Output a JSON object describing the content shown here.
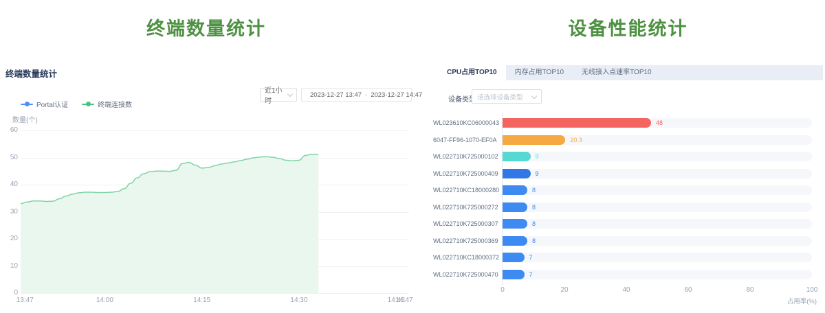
{
  "colors": {
    "title_green": "#4E9142",
    "heading_navy": "#2A3B5A",
    "axis_gray": "#98A2B3",
    "grid_line": "#EEF1F6",
    "legend_blue": "#4E8EF7",
    "legend_green": "#46C383",
    "line_green": "#7FD4A4",
    "area_fill": "#E9F7EF",
    "tabbar_bg": "#E9EEF6"
  },
  "left_panel": {
    "page_title": "终端数量统计",
    "heading": "终端数量统计",
    "time_range_value": "近1小时",
    "date_start": "2023-12-27 13:47",
    "date_separator": "-",
    "date_end": "2023-12-27 14:47"
  },
  "right_panel": {
    "page_title": "设备性能统计",
    "tabs": [
      {
        "label": "CPU占用TOP10",
        "active": true
      },
      {
        "label": "内存占用TOP10",
        "active": false
      },
      {
        "label": "无线接入点速率TOP10",
        "active": false
      }
    ],
    "device_type_label": "设备类型",
    "device_type_placeholder": "请选择设备类型"
  },
  "chart_data": [
    {
      "type": "area",
      "title": "终端数量统计",
      "xlabel": "",
      "ylabel": "数量(个)",
      "ylim": [
        0,
        60
      ],
      "y_ticks": [
        0,
        10,
        20,
        30,
        40,
        50,
        60
      ],
      "x_range": [
        "13:47",
        "14:47"
      ],
      "x_ticks": [
        "13:47",
        "14:00",
        "14:15",
        "14:30",
        "14:45",
        "14:47"
      ],
      "grid": true,
      "legend_position": "top-left",
      "series": [
        {
          "name": "Portal认证",
          "color": "#4E8EF7",
          "x": [],
          "values": []
        },
        {
          "name": "终端连接数",
          "color": "#46C383",
          "line_color": "#7FD4A4",
          "fill_color": "#E9F7EF",
          "x": [
            "13:47",
            "13:48",
            "13:49",
            "13:50",
            "13:51",
            "13:52",
            "13:53",
            "13:54",
            "13:55",
            "13:56",
            "13:57",
            "13:58",
            "13:59",
            "14:00",
            "14:01",
            "14:02",
            "14:03",
            "14:04",
            "14:05",
            "14:06",
            "14:07",
            "14:08",
            "14:09",
            "14:10",
            "14:11",
            "14:12",
            "14:13",
            "14:14",
            "14:15",
            "14:16",
            "14:17",
            "14:18",
            "14:19",
            "14:20",
            "14:21",
            "14:22",
            "14:23",
            "14:24",
            "14:25",
            "14:26",
            "14:27",
            "14:28",
            "14:29",
            "14:30",
            "14:31",
            "14:32",
            "14:33"
          ],
          "values": [
            33,
            33.6,
            34,
            34,
            33.8,
            33.9,
            34.8,
            35.8,
            36.5,
            37,
            37.2,
            37.2,
            37.1,
            37.1,
            37.2,
            37.5,
            38.5,
            40.5,
            42.5,
            44,
            44.8,
            45,
            45,
            44.9,
            45.3,
            47.8,
            48.2,
            47.2,
            46.1,
            46.3,
            47,
            47.6,
            48,
            48.4,
            48.9,
            49.4,
            49.9,
            50.2,
            50.3,
            50.1,
            49.6,
            49,
            48.8,
            49,
            50.8,
            51.2,
            51.2
          ]
        }
      ]
    },
    {
      "type": "bar",
      "orientation": "horizontal",
      "title": "CPU占用TOP10",
      "xlabel": "占用率(%)",
      "xlim": [
        0,
        100
      ],
      "x_ticks": [
        0,
        20,
        40,
        60,
        80,
        100
      ],
      "categories": [
        "WL023610KC06000043",
        "6047-FF96-1070-EF0A",
        "WL022710K725000102",
        "WL022710K725000409",
        "WL022710KC18000280",
        "WL022710K725000272",
        "WL022710K725000307",
        "WL022710K725000369",
        "WL022710KC18000372",
        "WL022710K725000470"
      ],
      "values": [
        48,
        20.3,
        9,
        9,
        8,
        8,
        8,
        8,
        7,
        7
      ],
      "bar_colors": [
        "#F5655F",
        "#F5A940",
        "#55D9D2",
        "#3178E6",
        "#3D8AF2",
        "#3D8AF2",
        "#3D8AF2",
        "#3D8AF2",
        "#3D8AF2",
        "#3D8AF2"
      ]
    }
  ]
}
